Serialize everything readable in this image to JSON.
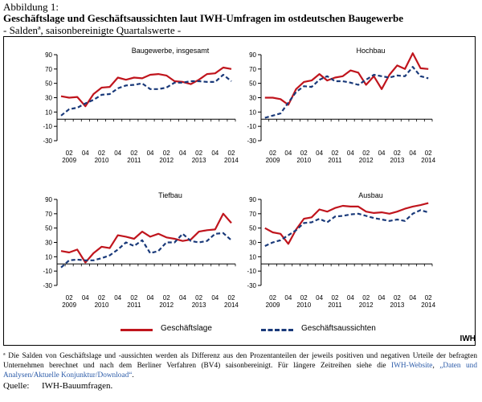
{
  "header": {
    "figure_label": "Abbildung 1:",
    "title": "Geschäftslage und Geschäftsaussichten laut IWH-Umfragen im ostdeutschen Baugewerbe",
    "subtitle": "- Saldenª, saisonbereinigte Quartalswerte -"
  },
  "legend": {
    "series_1": "Geschäftslage",
    "series_2": "Geschäftsaussichten",
    "brand": "IWH"
  },
  "colors": {
    "lage": "#c0151d",
    "aussichten": "#1a3a7a",
    "axis": "#000000"
  },
  "footnote": {
    "text": "ª Die Salden von Geschäftslage und -aussichten werden als Differenz aus den Prozentanteilen der jeweils positiven und negativen Urteile der befragten Unternehmen berechnet und nach dem Berliner Verfahren (BV4) saisonbereinigt. Für längere Zeitreihen siehe die ",
    "link1": "IWH-Website",
    "sep": ", ",
    "link2": "„Daten und Analysen/Aktuelle Konjunktur/Download“",
    "end": "."
  },
  "source": {
    "label": "Quelle:",
    "text": "IWH-Bauumfragen."
  },
  "chart_data": [
    {
      "type": "line",
      "title": "Baugewerbe, insgesamt",
      "ylim": [
        -30,
        90
      ],
      "yticks": [
        -30,
        -10,
        10,
        30,
        50,
        70,
        90
      ],
      "xticks": [
        {
          "top": "02",
          "bottom": "2009"
        },
        {
          "top": "04",
          "bottom": ""
        },
        {
          "top": "02",
          "bottom": "2010"
        },
        {
          "top": "04",
          "bottom": ""
        },
        {
          "top": "02",
          "bottom": "2011"
        },
        {
          "top": "04",
          "bottom": ""
        },
        {
          "top": "02",
          "bottom": "2012"
        },
        {
          "top": "04",
          "bottom": ""
        },
        {
          "top": "02",
          "bottom": "2013"
        },
        {
          "top": "04",
          "bottom": ""
        },
        {
          "top": "02",
          "bottom": "2014"
        }
      ],
      "x": [
        "2009Q1",
        "2009Q2",
        "2009Q3",
        "2009Q4",
        "2010Q1",
        "2010Q2",
        "2010Q3",
        "2010Q4",
        "2011Q1",
        "2011Q2",
        "2011Q3",
        "2011Q4",
        "2012Q1",
        "2012Q2",
        "2012Q3",
        "2012Q4",
        "2013Q1",
        "2013Q2",
        "2013Q3",
        "2013Q4",
        "2014Q1",
        "2014Q2"
      ],
      "series": [
        {
          "name": "Geschäftslage",
          "values": [
            32,
            30,
            31,
            18,
            35,
            44,
            45,
            58,
            55,
            58,
            57,
            62,
            63,
            61,
            53,
            52,
            49,
            55,
            63,
            64,
            72,
            70
          ]
        },
        {
          "name": "Geschäftsaussichten",
          "values": [
            5,
            14,
            16,
            22,
            27,
            34,
            35,
            43,
            47,
            48,
            50,
            42,
            42,
            44,
            51,
            51,
            53,
            53,
            52,
            52,
            62,
            53
          ]
        }
      ]
    },
    {
      "type": "line",
      "title": "Hochbau",
      "ylim": [
        -30,
        90
      ],
      "yticks": [
        -30,
        -10,
        10,
        30,
        50,
        70,
        90
      ],
      "xticks": [
        {
          "top": "02",
          "bottom": "2009"
        },
        {
          "top": "04",
          "bottom": ""
        },
        {
          "top": "02",
          "bottom": "2010"
        },
        {
          "top": "04",
          "bottom": ""
        },
        {
          "top": "02",
          "bottom": "2011"
        },
        {
          "top": "04",
          "bottom": ""
        },
        {
          "top": "02",
          "bottom": "2012"
        },
        {
          "top": "04",
          "bottom": ""
        },
        {
          "top": "02",
          "bottom": "2013"
        },
        {
          "top": "04",
          "bottom": ""
        },
        {
          "top": "02",
          "bottom": "2014"
        }
      ],
      "x": [
        "2009Q1",
        "2009Q2",
        "2009Q3",
        "2009Q4",
        "2010Q1",
        "2010Q2",
        "2010Q3",
        "2010Q4",
        "2011Q1",
        "2011Q2",
        "2011Q3",
        "2011Q4",
        "2012Q1",
        "2012Q2",
        "2012Q3",
        "2012Q4",
        "2013Q1",
        "2013Q2",
        "2013Q3",
        "2013Q4",
        "2014Q1",
        "2014Q2"
      ],
      "series": [
        {
          "name": "Geschäftslage",
          "values": [
            30,
            30,
            28,
            20,
            42,
            52,
            54,
            63,
            54,
            58,
            60,
            68,
            65,
            48,
            60,
            42,
            62,
            75,
            70,
            92,
            71,
            70
          ]
        },
        {
          "name": "Geschäftsaussichten",
          "values": [
            2,
            5,
            8,
            23,
            38,
            46,
            45,
            55,
            60,
            53,
            53,
            51,
            48,
            55,
            62,
            60,
            58,
            61,
            60,
            73,
            60,
            57
          ]
        }
      ]
    },
    {
      "type": "line",
      "title": "Tiefbau",
      "ylim": [
        -30,
        90
      ],
      "yticks": [
        -30,
        -10,
        10,
        30,
        50,
        70,
        90
      ],
      "xticks": [
        {
          "top": "02",
          "bottom": "2009"
        },
        {
          "top": "04",
          "bottom": ""
        },
        {
          "top": "02",
          "bottom": "2010"
        },
        {
          "top": "04",
          "bottom": ""
        },
        {
          "top": "02",
          "bottom": "2011"
        },
        {
          "top": "04",
          "bottom": ""
        },
        {
          "top": "02",
          "bottom": "2012"
        },
        {
          "top": "04",
          "bottom": ""
        },
        {
          "top": "02",
          "bottom": "2013"
        },
        {
          "top": "04",
          "bottom": ""
        },
        {
          "top": "02",
          "bottom": "2014"
        }
      ],
      "x": [
        "2009Q1",
        "2009Q2",
        "2009Q3",
        "2009Q4",
        "2010Q1",
        "2010Q2",
        "2010Q3",
        "2010Q4",
        "2011Q1",
        "2011Q2",
        "2011Q3",
        "2011Q4",
        "2012Q1",
        "2012Q2",
        "2012Q3",
        "2012Q4",
        "2013Q1",
        "2013Q2",
        "2013Q3",
        "2013Q4",
        "2014Q1",
        "2014Q2"
      ],
      "series": [
        {
          "name": "Geschäftslage",
          "values": [
            18,
            16,
            20,
            2,
            15,
            24,
            22,
            40,
            38,
            35,
            45,
            38,
            42,
            37,
            35,
            32,
            34,
            45,
            47,
            48,
            70,
            57
          ]
        },
        {
          "name": "Geschäftsaussichten",
          "values": [
            -5,
            5,
            6,
            5,
            5,
            8,
            12,
            20,
            30,
            25,
            33,
            15,
            18,
            30,
            30,
            42,
            32,
            30,
            32,
            42,
            43,
            33
          ]
        }
      ]
    },
    {
      "type": "line",
      "title": "Ausbau",
      "ylim": [
        -30,
        90
      ],
      "yticks": [
        -30,
        -10,
        10,
        30,
        50,
        70,
        90
      ],
      "xticks": [
        {
          "top": "02",
          "bottom": "2009"
        },
        {
          "top": "04",
          "bottom": ""
        },
        {
          "top": "02",
          "bottom": "2010"
        },
        {
          "top": "04",
          "bottom": ""
        },
        {
          "top": "02",
          "bottom": "2011"
        },
        {
          "top": "04",
          "bottom": ""
        },
        {
          "top": "02",
          "bottom": "2012"
        },
        {
          "top": "04",
          "bottom": ""
        },
        {
          "top": "02",
          "bottom": "2013"
        },
        {
          "top": "04",
          "bottom": ""
        },
        {
          "top": "02",
          "bottom": "2014"
        }
      ],
      "x": [
        "2009Q1",
        "2009Q2",
        "2009Q3",
        "2009Q4",
        "2010Q1",
        "2010Q2",
        "2010Q3",
        "2010Q4",
        "2011Q1",
        "2011Q2",
        "2011Q3",
        "2011Q4",
        "2012Q1",
        "2012Q2",
        "2012Q3",
        "2012Q4",
        "2013Q1",
        "2013Q2",
        "2013Q3",
        "2013Q4",
        "2014Q1",
        "2014Q2"
      ],
      "series": [
        {
          "name": "Geschäftslage",
          "values": [
            50,
            44,
            42,
            28,
            48,
            63,
            65,
            76,
            73,
            78,
            81,
            80,
            80,
            73,
            71,
            72,
            70,
            73,
            77,
            80,
            82,
            85
          ]
        },
        {
          "name": "Geschäftsaussichten",
          "values": [
            25,
            30,
            33,
            40,
            47,
            57,
            58,
            63,
            58,
            66,
            67,
            69,
            70,
            67,
            64,
            62,
            60,
            62,
            60,
            70,
            75,
            72
          ]
        }
      ]
    }
  ]
}
